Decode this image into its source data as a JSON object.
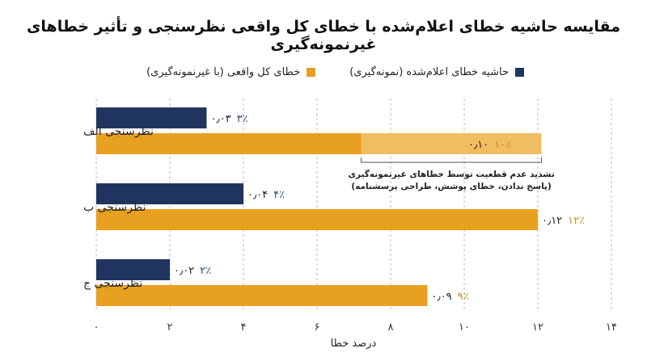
{
  "chart_data": {
    "type": "bar",
    "orientation": "horizontal",
    "title": "مقایسه حاشیه خطای اعلام‌شده با خطای کل واقعی نظرسنجی و تأثیر خطاهای غیرنمونه‌گیری",
    "xlabel": "درصد خطا",
    "xlim": [
      0,
      14
    ],
    "xticks": [
      0,
      2,
      4,
      6,
      8,
      10,
      12,
      14
    ],
    "xtick_labels": [
      "۰",
      "۲",
      "۴",
      "۶",
      "۸",
      "۱۰",
      "۱۲",
      "۱۴"
    ],
    "grid": "vertical dashed",
    "legend_position": "top",
    "categories": [
      "نظرسنجی الف",
      "نظرسنجی ب",
      "نظرسنجی ج"
    ],
    "series": [
      {
        "name": "حاشیه خطای اعلام‌شده (نمونه‌گیری)",
        "color": "#1f3560",
        "values": [
          3,
          4,
          2
        ],
        "decimal_labels": [
          "۰٫۰۳",
          "۰٫۰۴",
          "۰٫۰۲"
        ],
        "percent_labels": [
          "۳٪",
          "۴٪",
          "۲٪"
        ]
      },
      {
        "name": "خطای کل واقعی (با غیرنمونه‌گیری)",
        "color": "#e8a020",
        "values": [
          10,
          12,
          9
        ],
        "decimal_labels": [
          "۰٫۱۰",
          "۰٫۱۲",
          "۰٫۰۹"
        ],
        "percent_labels": [
          "۱۰٪",
          "۱۲٪",
          "۹٪"
        ]
      }
    ],
    "highlight": {
      "category_index": 0,
      "from": 7.2,
      "to": 12.1,
      "color": "#f0be60"
    },
    "annotation": {
      "line1": "تشدید عدم قطعیت توسط خطاهای غیرنمونه‌گیری",
      "line2": "(پاسخ ندادن، خطای پوشش، طراحی پرسشنامه)"
    }
  }
}
